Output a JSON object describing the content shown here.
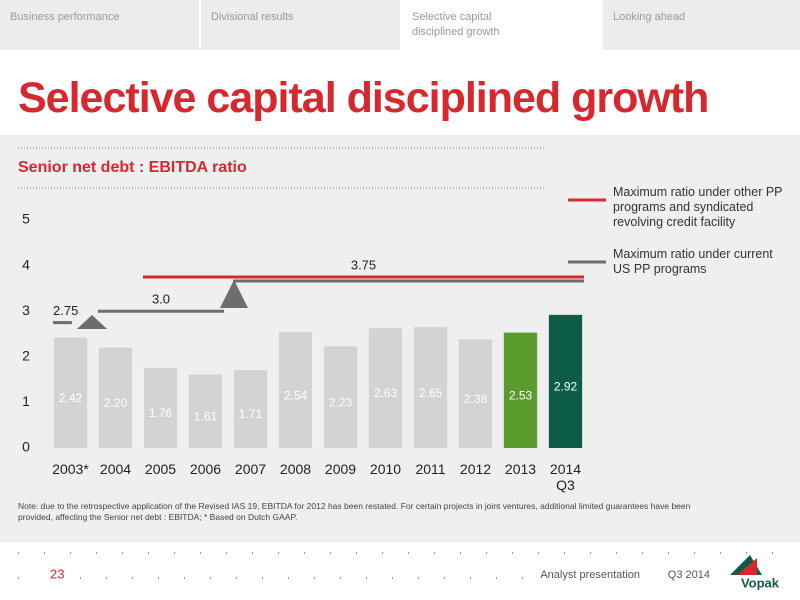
{
  "tabs": [
    "Business performance",
    "Divisional results",
    "Selective capital\ndisciplined growth",
    "Looking ahead"
  ],
  "title": "Selective capital disciplined growth",
  "chart_data": {
    "type": "bar",
    "title": "Senior net debt : EBITDA ratio",
    "categories": [
      "2003*",
      "2004",
      "2005",
      "2006",
      "2007",
      "2008",
      "2009",
      "2010",
      "2011",
      "2012",
      "2013",
      "2014\nQ3"
    ],
    "values": [
      2.42,
      2.2,
      1.76,
      1.61,
      1.71,
      2.54,
      2.23,
      2.63,
      2.65,
      2.38,
      2.53,
      2.92
    ],
    "value_labels": [
      "2.42",
      "2.20",
      "1.76",
      "1.61",
      "1.71",
      "2.54",
      "2.23",
      "2.63",
      "2.65",
      "2.38",
      "2.53",
      "2.92"
    ],
    "colors": [
      "#d3d3d3",
      "#d3d3d3",
      "#d3d3d3",
      "#d3d3d3",
      "#d3d3d3",
      "#d3d3d3",
      "#d3d3d3",
      "#d3d3d3",
      "#d3d3d3",
      "#d3d3d3",
      "#5b9b2c",
      "#0d5c48"
    ],
    "ylim": [
      0,
      5
    ],
    "yticks": [
      0,
      1,
      2,
      3,
      4,
      5
    ],
    "grid": false,
    "reference_lines": [
      {
        "value": 2.75,
        "label": "2.75",
        "color": "#6d6d6d",
        "start": "2003*",
        "end": "2003*"
      },
      {
        "value": {
          "value": 3.0,
          "label": "3.0"
        },
        "color": "#6d6d6d",
        "start": "2004",
        "end": "2006"
      },
      {
        "value": 3.75,
        "label": "3.75",
        "color": "#d7282f",
        "start": "2005",
        "end": "2014\nQ3"
      },
      {
        "value": 3.75,
        "color": "#6d6d6d",
        "start": "2007",
        "end": "2014\nQ3"
      }
    ],
    "legend": [
      {
        "label": "Maximum ratio under other PP programs and syndicated revolving credit facility",
        "color": "#d7282f"
      },
      {
        "label": "Maximum ratio under current US PP programs",
        "color": "#6d6d6d"
      }
    ]
  },
  "note": "Note: due to the retrospective application of the Revised IAS 19, EBITDA for 2012 has been restated. For certain projects in joint ventures, additional limited guarantees have been provided, affecting the  Senior net debt : EBITDA; * Based on Dutch GAAP.",
  "footer": {
    "page": "23",
    "presentation": "Analyst presentation",
    "period": "Q3 2014",
    "logo": "Vopak"
  }
}
